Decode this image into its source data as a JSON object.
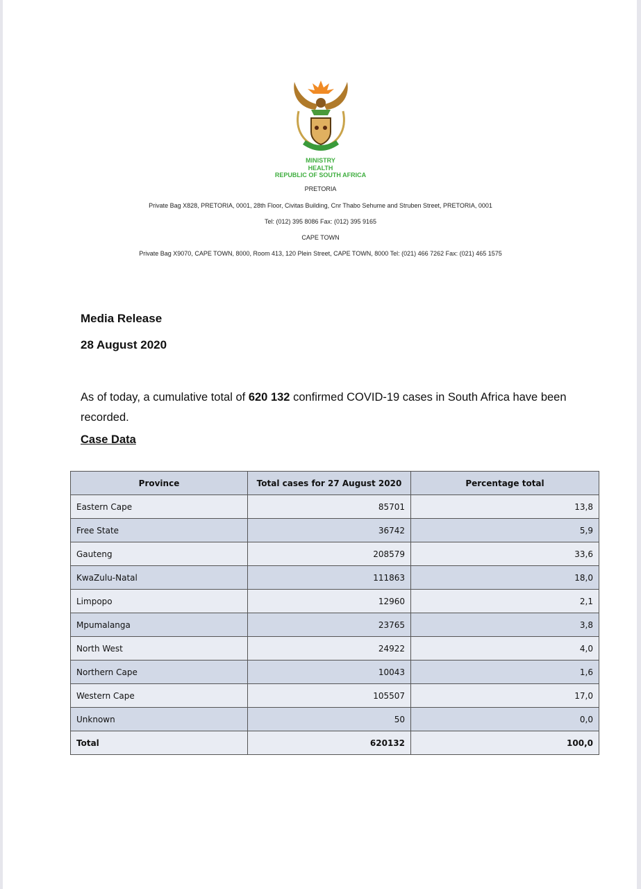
{
  "letterhead": {
    "emblem": "coat-of-arms-south-africa",
    "ministry": "MINISTRY",
    "department": "HEALTH",
    "country": "REPUBLIC OF SOUTH AFRICA",
    "pretoria_label": "PRETORIA",
    "pretoria_address": "Private Bag X828, PRETORIA, 0001, 28th Floor, Civitas Building, Cnr Thabo Sehume and Struben Street, PRETORIA, 0001",
    "pretoria_contact": "Tel: (012) 395 8086 Fax: (012) 395 9165",
    "capetown_label": "CAPE TOWN",
    "capetown_address": "Private Bag X9070, CAPE TOWN, 8000, Room 413, 120 Plein Street, CAPE TOWN, 8000 Tel: (021) 466 7262 Fax: (021) 465 1575"
  },
  "release": {
    "title": "Media Release",
    "date": "28 August 2020",
    "text_before": "As of today, a cumulative total of ",
    "total_bold": "620 132",
    "text_after": " confirmed COVID-19 cases in South Africa have been recorded."
  },
  "case_data": {
    "heading": "Case Data",
    "headers": [
      "Province",
      "Total cases for 27 August 2020",
      "Percentage total"
    ],
    "rows": [
      [
        "Eastern Cape",
        "85701",
        "13,8"
      ],
      [
        "Free State",
        "36742",
        "5,9"
      ],
      [
        "Gauteng",
        "208579",
        "33,6"
      ],
      [
        "KwaZulu-Natal",
        "111863",
        "18,0"
      ],
      [
        "Limpopo",
        "12960",
        "2,1"
      ],
      [
        "Mpumalanga",
        "23765",
        "3,8"
      ],
      [
        "North West",
        "24922",
        "4,0"
      ],
      [
        "Northern Cape",
        "10043",
        "1,6"
      ],
      [
        "Western Cape",
        "105507",
        "17,0"
      ],
      [
        "Unknown",
        "50",
        "0,0"
      ]
    ],
    "total": [
      "Total",
      "620132",
      "100,0"
    ]
  }
}
